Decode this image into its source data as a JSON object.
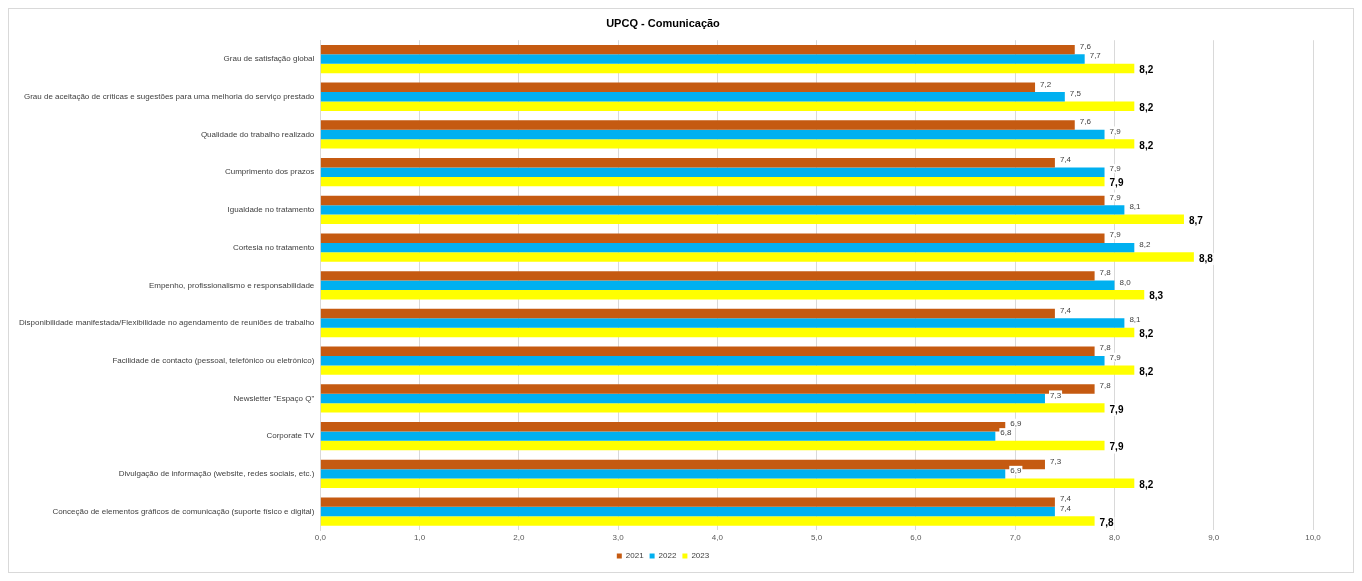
{
  "chart_data": {
    "type": "bar",
    "orientation": "horizontal",
    "title": "UPCQ - Comunicação",
    "categories": [
      "Grau de satisfação global",
      "Grau de aceitação de críticas e sugestões para uma melhoria do serviço prestado",
      "Qualidade do trabalho realizado",
      "Cumprimento dos prazos",
      "Igualdade no tratamento",
      "Cortesia no tratamento",
      "Empenho, profissionalismo e responsabilidade",
      "Disponibilidade manifestada/Flexibilidade no agendamento de reuniões de trabalho",
      "Facilidade de contacto (pessoal, telefónico ou eletrónico)",
      "Newsletter \"Espaço Q\"",
      "Corporate TV",
      "Divulgação de informação (website, redes sociais, etc.)",
      "Conceção de elementos gráficos de comunicação (suporte físico e digital)"
    ],
    "series": [
      {
        "name": "2021",
        "color": "#c55a11",
        "values": [
          7.6,
          7.2,
          7.6,
          7.4,
          7.9,
          7.9,
          7.8,
          7.4,
          7.8,
          7.8,
          6.9,
          7.3,
          7.4
        ],
        "value_labels": [
          "7,6",
          "7,2",
          "7,6",
          "7,4",
          "7,9",
          "7,9",
          "7,8",
          "7,4",
          "7,8",
          "7,8",
          "6,9",
          "7,3",
          "7,4"
        ]
      },
      {
        "name": "2022",
        "color": "#00b0f0",
        "values": [
          7.7,
          7.5,
          7.9,
          7.9,
          8.1,
          8.2,
          8.0,
          8.1,
          7.9,
          7.3,
          6.8,
          6.9,
          7.4
        ],
        "value_labels": [
          "7,7",
          "7,5",
          "7,9",
          "7,9",
          "8,1",
          "8,2",
          "8,0",
          "8,1",
          "7,9",
          "7,3",
          "6,8",
          "6,9",
          "7,4"
        ]
      },
      {
        "name": "2023",
        "color": "#ffff00",
        "values": [
          8.2,
          8.2,
          8.2,
          7.9,
          8.7,
          8.8,
          8.3,
          8.2,
          8.2,
          7.9,
          7.9,
          8.2,
          7.8
        ],
        "value_labels": [
          "8,2",
          "8,2",
          "8,2",
          "7,9",
          "8,7",
          "8,8",
          "8,3",
          "8,2",
          "8,2",
          "7,9",
          "7,9",
          "8,2",
          "7,8"
        ]
      }
    ],
    "xlim": [
      0,
      10
    ],
    "xticks": [
      {
        "value": 0,
        "label": "0,0"
      },
      {
        "value": 1,
        "label": "1,0"
      },
      {
        "value": 2,
        "label": "2,0"
      },
      {
        "value": 3,
        "label": "3,0"
      },
      {
        "value": 4,
        "label": "4,0"
      },
      {
        "value": 5,
        "label": "5,0"
      },
      {
        "value": 6,
        "label": "6,0"
      },
      {
        "value": 7,
        "label": "7,0"
      },
      {
        "value": 8,
        "label": "8,0"
      },
      {
        "value": 9,
        "label": "9,0"
      },
      {
        "value": 10,
        "label": "10,0"
      }
    ],
    "grid": "x",
    "legend": "bottom"
  }
}
